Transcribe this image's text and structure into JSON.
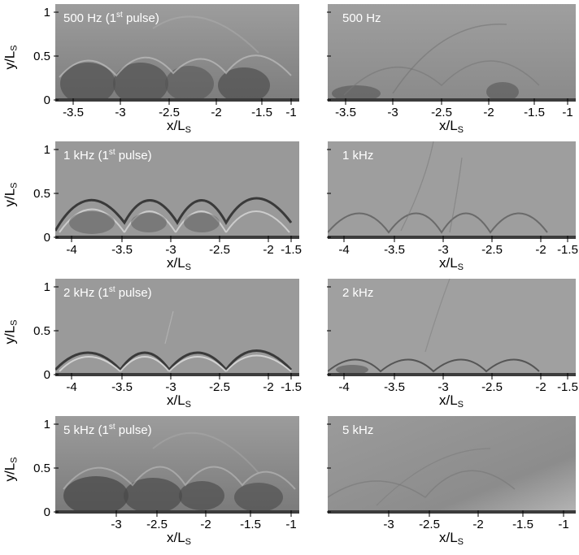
{
  "figure": {
    "rows": [
      {
        "id": "500hz",
        "left_label": "500 Hz (1",
        "left_sup": "st",
        "left_tail": " pulse)",
        "right_label": "500 Hz",
        "xticks": [
          "-3.5",
          "-3",
          "-2.5",
          "-2",
          "-1.5",
          "-1"
        ],
        "yticks": [
          "1",
          "0.5",
          "0"
        ]
      },
      {
        "id": "1khz",
        "left_label": "1 kHz (1",
        "left_sup": "st",
        "left_tail": " pulse)",
        "right_label": "1 kHz",
        "xticks": [
          "-4",
          "-3.5",
          "-3",
          "-2.5",
          "-2",
          "-1.5"
        ],
        "yticks": [
          "1",
          "0.5",
          "0"
        ]
      },
      {
        "id": "2khz",
        "left_label": "2 kHz (1",
        "left_sup": "st",
        "left_tail": " pulse)",
        "right_label": "2 kHz",
        "xticks": [
          "-4",
          "-3.5",
          "-3",
          "-2.5",
          "-2",
          "-1.5"
        ],
        "yticks": [
          "1",
          "0.5",
          "0"
        ]
      },
      {
        "id": "5khz",
        "left_label": "5 kHz (1",
        "left_sup": "st",
        "left_tail": " pulse)",
        "right_label": "5 kHz",
        "xticks": [
          "-3",
          "-2.5",
          "-2",
          "-1.5",
          "-1"
        ],
        "yticks": [
          "1",
          "0.5",
          "0"
        ]
      }
    ],
    "axis": {
      "xlabel_main": "x/L",
      "xlabel_sub": "S",
      "ylabel_main": "y/L",
      "ylabel_sub": "S"
    }
  }
}
